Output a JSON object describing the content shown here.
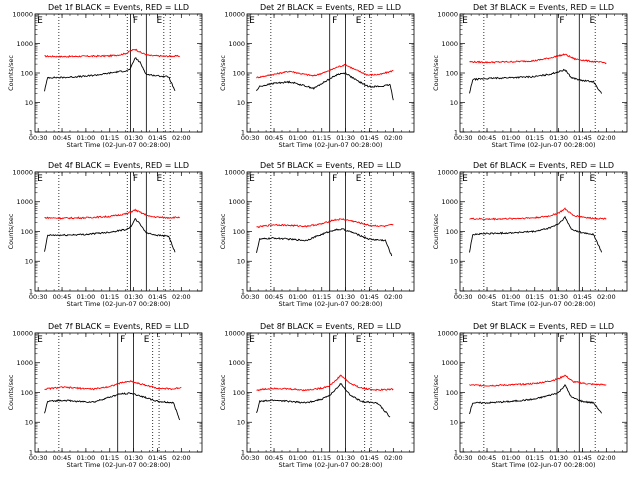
{
  "chart_data": [
    {
      "type": "line",
      "title": "Det 1f BLACK = Events, RED = LLD",
      "xlabel": "Start Time (02-Jun-07 00:28:00)",
      "ylabel": "Counts/sec",
      "x_ticks": [
        "00:30",
        "00:45",
        "01:00",
        "01:15",
        "01:30",
        "01:45",
        "02:00"
      ],
      "y_ticks": [
        "1",
        "10",
        "100",
        "1000",
        "10000"
      ],
      "ylim": [
        1,
        10000
      ],
      "yscale": "log",
      "markers": {
        "E1": "E",
        "F": "F",
        "E2": "E"
      },
      "dotted_lines": [
        "00:43",
        "01:26",
        "01:49",
        "01:53"
      ],
      "solid_lines": [
        "01:28",
        "01:38"
      ],
      "series": [
        {
          "name": "LLD",
          "color": "#ff0000",
          "x": [
            "00:34",
            "00:45",
            "01:00",
            "01:15",
            "01:22",
            "01:26",
            "01:28",
            "01:31",
            "01:35",
            "01:40",
            "01:50",
            "01:59"
          ],
          "values": [
            370,
            360,
            370,
            380,
            420,
            480,
            560,
            640,
            480,
            390,
            370,
            375
          ]
        },
        {
          "name": "Events",
          "color": "#000000",
          "x": [
            "00:34",
            "00:36",
            "00:45",
            "01:00",
            "01:10",
            "01:20",
            "01:26",
            "01:28",
            "01:31",
            "01:34",
            "01:38",
            "01:45",
            "01:52",
            "01:56"
          ],
          "values": [
            25,
            70,
            70,
            78,
            90,
            110,
            120,
            140,
            330,
            230,
            90,
            80,
            75,
            25
          ]
        }
      ]
    },
    {
      "type": "line",
      "title": "Det 2f BLACK = Events, RED = LLD",
      "xlabel": "Start Time (02-Jun-07 00:28:00)",
      "ylabel": "Counts/sec",
      "x_ticks": [
        "00:30",
        "00:45",
        "01:00",
        "01:15",
        "01:30",
        "01:45",
        "02:00"
      ],
      "y_ticks": [
        "1",
        "10",
        "100",
        "1000",
        "10000"
      ],
      "ylim": [
        1,
        10000
      ],
      "yscale": "log",
      "markers": {
        "E1": "E",
        "F": "F",
        "E2": "E"
      },
      "dotted_lines": [
        "00:43",
        "01:42",
        "01:46"
      ],
      "solid_lines": [
        "01:20",
        "01:30"
      ],
      "series": [
        {
          "name": "LLD",
          "color": "#ff0000",
          "x": [
            "00:34",
            "00:45",
            "00:55",
            "01:02",
            "01:10",
            "01:18",
            "01:25",
            "01:30",
            "01:36",
            "01:44",
            "01:52",
            "02:00"
          ],
          "values": [
            70,
            90,
            115,
            95,
            80,
            110,
            160,
            190,
            130,
            85,
            90,
            120
          ]
        },
        {
          "name": "Events",
          "color": "#000000",
          "x": [
            "00:34",
            "00:36",
            "00:45",
            "00:55",
            "01:02",
            "01:10",
            "01:18",
            "01:25",
            "01:30",
            "01:36",
            "01:44",
            "01:52",
            "01:58",
            "02:00"
          ],
          "values": [
            25,
            35,
            45,
            50,
            40,
            30,
            55,
            90,
            100,
            60,
            35,
            35,
            40,
            12
          ]
        }
      ]
    },
    {
      "type": "line",
      "title": "Det 3f BLACK = Events, RED = LLD",
      "xlabel": "Start Time (02-Jun-07 00:28:00)",
      "ylabel": "Counts/sec",
      "x_ticks": [
        "00:30",
        "00:45",
        "01:00",
        "01:15",
        "01:30",
        "01:45",
        "02:00"
      ],
      "y_ticks": [
        "1",
        "10",
        "100",
        "1000",
        "10000"
      ],
      "ylim": [
        1,
        10000
      ],
      "yscale": "log",
      "markers": {
        "E1": "E",
        "F": "F",
        "E2": "E"
      },
      "dotted_lines": [
        "00:43",
        "01:53"
      ],
      "solid_lines": [
        "01:29",
        "01:43"
      ],
      "series": [
        {
          "name": "LLD",
          "color": "#ff0000",
          "x": [
            "00:34",
            "00:45",
            "01:00",
            "01:15",
            "01:24",
            "01:30",
            "01:34",
            "01:40",
            "01:50",
            "02:00"
          ],
          "values": [
            240,
            230,
            240,
            260,
            320,
            380,
            430,
            300,
            250,
            220
          ]
        },
        {
          "name": "Events",
          "color": "#000000",
          "x": [
            "00:34",
            "00:36",
            "00:45",
            "01:00",
            "01:15",
            "01:24",
            "01:30",
            "01:34",
            "01:38",
            "01:45",
            "01:52",
            "01:57"
          ],
          "values": [
            20,
            60,
            65,
            70,
            75,
            90,
            110,
            130,
            70,
            55,
            50,
            20
          ]
        }
      ]
    },
    {
      "type": "line",
      "title": "Det 4f BLACK = Events, RED = LLD",
      "xlabel": "Start Time (02-Jun-07 00:28:00)",
      "ylabel": "Counts/sec",
      "x_ticks": [
        "00:30",
        "00:45",
        "01:00",
        "01:15",
        "01:30",
        "01:45",
        "02:00"
      ],
      "y_ticks": [
        "1",
        "10",
        "100",
        "1000",
        "10000"
      ],
      "ylim": [
        1,
        10000
      ],
      "yscale": "log",
      "markers": {
        "E1": "E",
        "F": "F",
        "E2": "E"
      },
      "dotted_lines": [
        "00:43",
        "01:26",
        "01:49",
        "01:53"
      ],
      "solid_lines": [
        "01:28",
        "01:38"
      ],
      "series": [
        {
          "name": "LLD",
          "color": "#ff0000",
          "x": [
            "00:34",
            "00:45",
            "01:00",
            "01:15",
            "01:26",
            "01:31",
            "01:35",
            "01:40",
            "01:50",
            "01:59"
          ],
          "values": [
            290,
            280,
            290,
            320,
            400,
            530,
            420,
            320,
            290,
            300
          ]
        },
        {
          "name": "Events",
          "color": "#000000",
          "x": [
            "00:34",
            "00:36",
            "00:45",
            "01:00",
            "01:15",
            "01:26",
            "01:28",
            "01:31",
            "01:34",
            "01:38",
            "01:45",
            "01:52",
            "01:56"
          ],
          "values": [
            20,
            75,
            75,
            80,
            95,
            120,
            140,
            260,
            180,
            90,
            75,
            70,
            20
          ]
        }
      ]
    },
    {
      "type": "line",
      "title": "Det 5f BLACK = Events, RED = LLD",
      "xlabel": "Start Time (02-Jun-07 00:28:00)",
      "ylabel": "Counts/sec",
      "x_ticks": [
        "00:30",
        "00:45",
        "01:00",
        "01:15",
        "01:30",
        "01:45",
        "02:00"
      ],
      "y_ticks": [
        "1",
        "10",
        "100",
        "1000",
        "10000"
      ],
      "ylim": [
        1,
        10000
      ],
      "yscale": "log",
      "markers": {
        "E1": "E",
        "F": "F",
        "E2": "E"
      },
      "dotted_lines": [
        "00:43",
        "01:42",
        "01:46"
      ],
      "solid_lines": [
        "01:20",
        "01:30"
      ],
      "series": [
        {
          "name": "LLD",
          "color": "#ff0000",
          "x": [
            "00:34",
            "00:45",
            "00:55",
            "01:05",
            "01:15",
            "01:22",
            "01:28",
            "01:35",
            "01:45",
            "01:55",
            "02:00"
          ],
          "values": [
            140,
            170,
            160,
            150,
            180,
            240,
            260,
            220,
            160,
            150,
            170
          ]
        },
        {
          "name": "Events",
          "color": "#000000",
          "x": [
            "00:34",
            "00:36",
            "00:45",
            "00:55",
            "01:05",
            "01:15",
            "01:22",
            "01:28",
            "01:35",
            "01:45",
            "01:55",
            "01:59"
          ],
          "values": [
            20,
            55,
            60,
            55,
            50,
            80,
            110,
            120,
            90,
            55,
            50,
            15
          ]
        }
      ]
    },
    {
      "type": "line",
      "title": "Det 6f BLACK = Events, RED = LLD",
      "xlabel": "Start Time (02-Jun-07 00:28:00)",
      "ylabel": "Counts/sec",
      "x_ticks": [
        "00:30",
        "00:45",
        "01:00",
        "01:15",
        "01:30",
        "01:45",
        "02:00"
      ],
      "y_ticks": [
        "1",
        "10",
        "100",
        "1000",
        "10000"
      ],
      "ylim": [
        1,
        10000
      ],
      "yscale": "log",
      "markers": {
        "E1": "E",
        "F": "F",
        "E2": "E"
      },
      "dotted_lines": [
        "00:43",
        "01:53"
      ],
      "solid_lines": [
        "01:29",
        "01:43"
      ],
      "series": [
        {
          "name": "LLD",
          "color": "#ff0000",
          "x": [
            "00:34",
            "00:45",
            "01:00",
            "01:15",
            "01:24",
            "01:30",
            "01:34",
            "01:39",
            "01:50",
            "02:00"
          ],
          "values": [
            270,
            260,
            270,
            290,
            330,
            420,
            580,
            350,
            280,
            270
          ]
        },
        {
          "name": "Events",
          "color": "#000000",
          "x": [
            "00:34",
            "00:36",
            "00:45",
            "01:00",
            "01:15",
            "01:24",
            "01:30",
            "01:34",
            "01:38",
            "01:45",
            "01:52",
            "01:57"
          ],
          "values": [
            20,
            80,
            85,
            90,
            100,
            130,
            180,
            300,
            120,
            90,
            80,
            20
          ]
        }
      ]
    },
    {
      "type": "line",
      "title": "Det 7f BLACK = Events, RED = LLD",
      "xlabel": "Start Time (02-Jun-07 00:28:00)",
      "ylabel": "Counts/sec",
      "x_ticks": [
        "00:30",
        "00:45",
        "01:00",
        "01:15",
        "01:30",
        "01:45",
        "02:00"
      ],
      "y_ticks": [
        "1",
        "10",
        "100",
        "1000",
        "10000"
      ],
      "ylim": [
        1,
        10000
      ],
      "yscale": "log",
      "markers": {
        "E1": "E",
        "F": "F",
        "E2": "E"
      },
      "dotted_lines": [
        "00:43",
        "01:42",
        "01:46"
      ],
      "solid_lines": [
        "01:20",
        "01:30"
      ],
      "series": [
        {
          "name": "LLD",
          "color": "#ff0000",
          "x": [
            "00:34",
            "00:45",
            "00:55",
            "01:05",
            "01:15",
            "01:22",
            "01:28",
            "01:35",
            "01:45",
            "01:55",
            "02:00"
          ],
          "values": [
            130,
            150,
            140,
            130,
            160,
            210,
            240,
            190,
            140,
            130,
            150
          ]
        },
        {
          "name": "Events",
          "color": "#000000",
          "x": [
            "00:34",
            "00:36",
            "00:45",
            "00:55",
            "01:05",
            "01:15",
            "01:22",
            "01:28",
            "01:35",
            "01:45",
            "01:55",
            "01:59"
          ],
          "values": [
            20,
            50,
            55,
            50,
            48,
            70,
            90,
            95,
            75,
            50,
            45,
            12
          ]
        }
      ]
    },
    {
      "type": "line",
      "title": "Det 8f BLACK = Events, RED = LLD",
      "xlabel": "Start Time (02-Jun-07 00:28:00)",
      "ylabel": "Counts/sec",
      "x_ticks": [
        "00:30",
        "00:45",
        "01:00",
        "01:15",
        "01:30",
        "01:45",
        "02:00"
      ],
      "y_ticks": [
        "1",
        "10",
        "100",
        "1000",
        "10000"
      ],
      "ylim": [
        1,
        10000
      ],
      "yscale": "log",
      "markers": {
        "E1": "E",
        "F": "F",
        "E2": "E"
      },
      "dotted_lines": [
        "00:43",
        "01:42",
        "01:46"
      ],
      "solid_lines": [
        "01:20",
        "01:30"
      ],
      "series": [
        {
          "name": "LLD",
          "color": "#ff0000",
          "x": [
            "00:34",
            "00:45",
            "00:55",
            "01:05",
            "01:15",
            "01:20",
            "01:24",
            "01:27",
            "01:33",
            "01:40",
            "01:50",
            "02:00"
          ],
          "values": [
            120,
            140,
            130,
            120,
            140,
            170,
            260,
            380,
            200,
            140,
            120,
            130
          ]
        },
        {
          "name": "Events",
          "color": "#000000",
          "x": [
            "00:34",
            "00:36",
            "00:45",
            "00:55",
            "01:05",
            "01:15",
            "01:20",
            "01:24",
            "01:27",
            "01:33",
            "01:40",
            "01:50",
            "01:58"
          ],
          "values": [
            20,
            50,
            55,
            50,
            45,
            60,
            80,
            130,
            200,
            80,
            50,
            45,
            15
          ]
        }
      ]
    },
    {
      "type": "line",
      "title": "Det 9f BLACK = Events, RED = LLD",
      "xlabel": "Start Time (02-Jun-07 00:28:00)",
      "ylabel": "Counts/sec",
      "x_ticks": [
        "00:30",
        "00:45",
        "01:00",
        "01:15",
        "01:30",
        "01:45",
        "02:00"
      ],
      "y_ticks": [
        "1",
        "10",
        "100",
        "1000",
        "10000"
      ],
      "ylim": [
        1,
        10000
      ],
      "yscale": "log",
      "markers": {
        "E1": "E",
        "F": "F",
        "E2": "E"
      },
      "dotted_lines": [
        "00:43",
        "01:53"
      ],
      "solid_lines": [
        "01:29",
        "01:43"
      ],
      "series": [
        {
          "name": "LLD",
          "color": "#ff0000",
          "x": [
            "00:34",
            "00:45",
            "01:00",
            "01:15",
            "01:24",
            "01:30",
            "01:34",
            "01:39",
            "01:50",
            "02:00"
          ],
          "values": [
            180,
            170,
            180,
            200,
            240,
            290,
            380,
            230,
            190,
            180
          ]
        },
        {
          "name": "Events",
          "color": "#000000",
          "x": [
            "00:34",
            "00:36",
            "00:45",
            "01:00",
            "01:15",
            "01:24",
            "01:30",
            "01:34",
            "01:38",
            "01:45",
            "01:52",
            "01:57"
          ],
          "values": [
            20,
            45,
            45,
            50,
            60,
            80,
            100,
            180,
            70,
            50,
            45,
            20
          ]
        }
      ]
    }
  ]
}
